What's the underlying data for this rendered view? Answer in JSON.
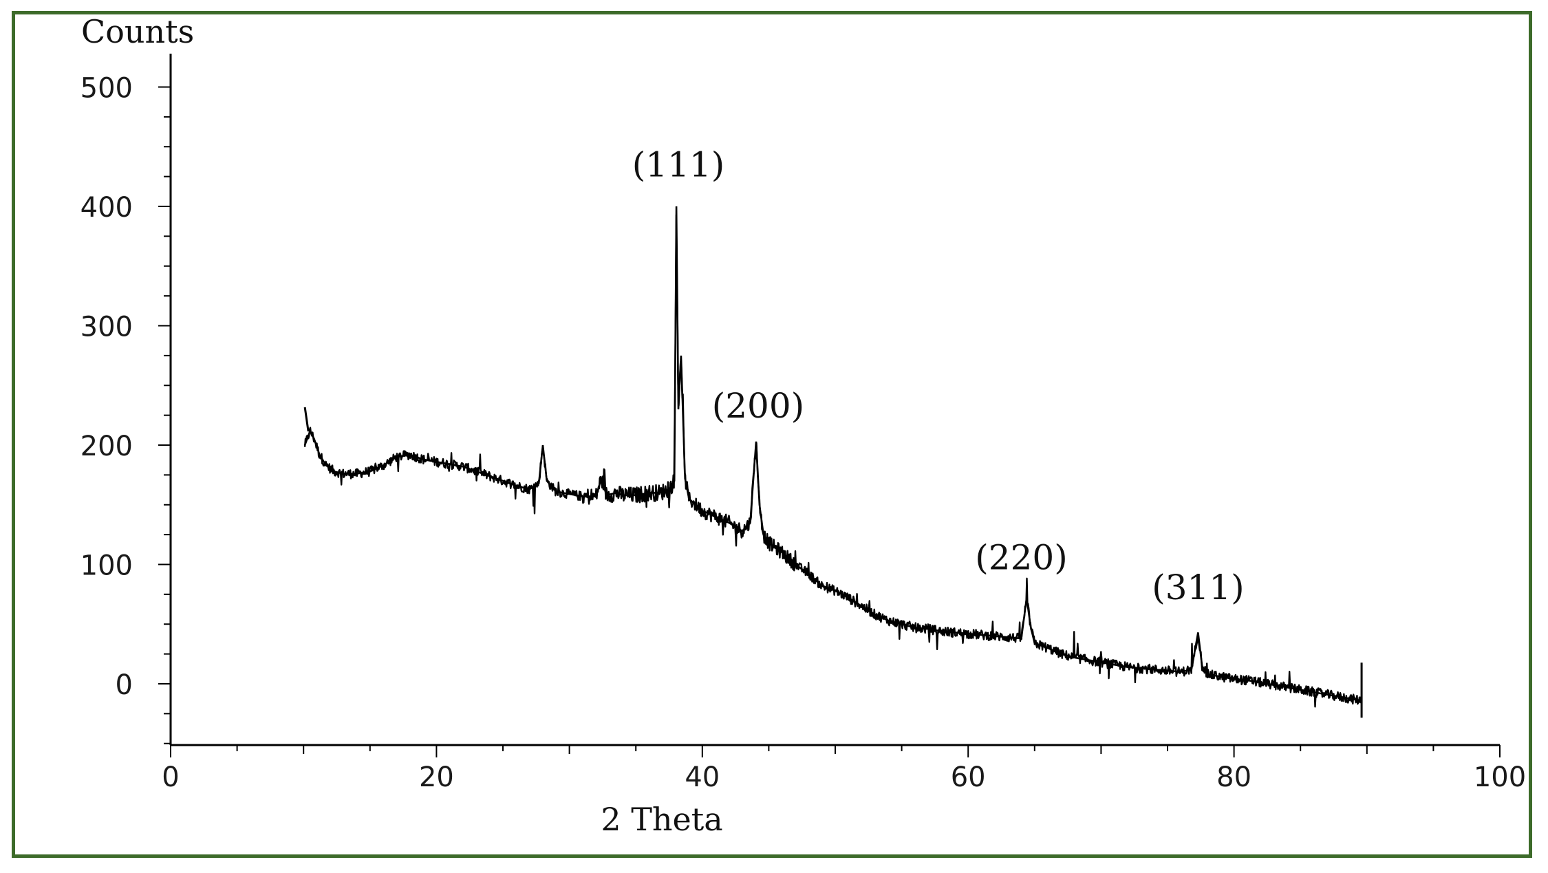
{
  "colors": {
    "frame": "#3d6b2a",
    "line": "#000000",
    "text": "#111111"
  },
  "chart_data": {
    "type": "line",
    "title": "",
    "xlabel": "2 Theta",
    "ylabel": "Counts",
    "xlim": [
      0,
      100
    ],
    "ylim": [
      -50,
      530
    ],
    "xticks": [
      "0",
      "20",
      "40",
      "60",
      "80",
      "100"
    ],
    "yticks": [
      "0",
      "100",
      "200",
      "300",
      "400",
      "500"
    ],
    "grid": false,
    "series": [
      {
        "name": "",
        "x": [
          10.1,
          10.5,
          10.8,
          11.2,
          11.7,
          12.3,
          13,
          14,
          15,
          16,
          17,
          18,
          19,
          20,
          21,
          22,
          23,
          24,
          25,
          26,
          27,
          27.7,
          28,
          28.3,
          29,
          30,
          31,
          32,
          32.4,
          32.8,
          33.5,
          34,
          35,
          36,
          36.8,
          37.5,
          37.9,
          38.05,
          38.2,
          38.4,
          38.7,
          39,
          40,
          41,
          42,
          43,
          43.6,
          44.05,
          44.3,
          44.6,
          45,
          46,
          47,
          48,
          49,
          50,
          51,
          52,
          53,
          54,
          55,
          56,
          57,
          58,
          59,
          60,
          61,
          62,
          63,
          64,
          64.4,
          64.7,
          65,
          66,
          67,
          68,
          69,
          70,
          71,
          72,
          73,
          74,
          75,
          76,
          76.8,
          77.3,
          77.6,
          78,
          79,
          80,
          81,
          82,
          83,
          84,
          85,
          86,
          87,
          88,
          89,
          89.6
        ],
        "y": [
          200,
          212,
          205,
          192,
          183,
          178,
          176,
          176,
          178,
          183,
          190,
          192,
          188,
          186,
          184,
          182,
          178,
          174,
          170,
          166,
          163,
          168,
          200,
          170,
          161,
          159,
          157,
          157,
          172,
          158,
          160,
          158,
          158,
          160,
          160,
          163,
          170,
          400,
          230,
          275,
          172,
          155,
          145,
          140,
          135,
          128,
          135,
          203,
          150,
          125,
          118,
          110,
          100,
          92,
          82,
          78,
          72,
          65,
          58,
          53,
          50,
          47,
          46,
          44,
          43,
          42,
          41,
          40,
          39,
          38,
          72,
          48,
          34,
          30,
          25,
          22,
          20,
          18,
          16,
          14,
          13,
          12,
          11,
          10,
          12,
          43,
          15,
          8,
          6,
          4,
          3,
          1,
          -1,
          -3,
          -5,
          -7,
          -9,
          -11,
          -13,
          -14
        ]
      }
    ],
    "annotations": [
      {
        "text": "(111)",
        "x": 38.2,
        "y": 425
      },
      {
        "text": "(200)",
        "x": 44.2,
        "y": 223
      },
      {
        "text": "(220)",
        "x": 64.0,
        "y": 96
      },
      {
        "text": "(311)",
        "x": 77.3,
        "y": 71
      }
    ]
  }
}
